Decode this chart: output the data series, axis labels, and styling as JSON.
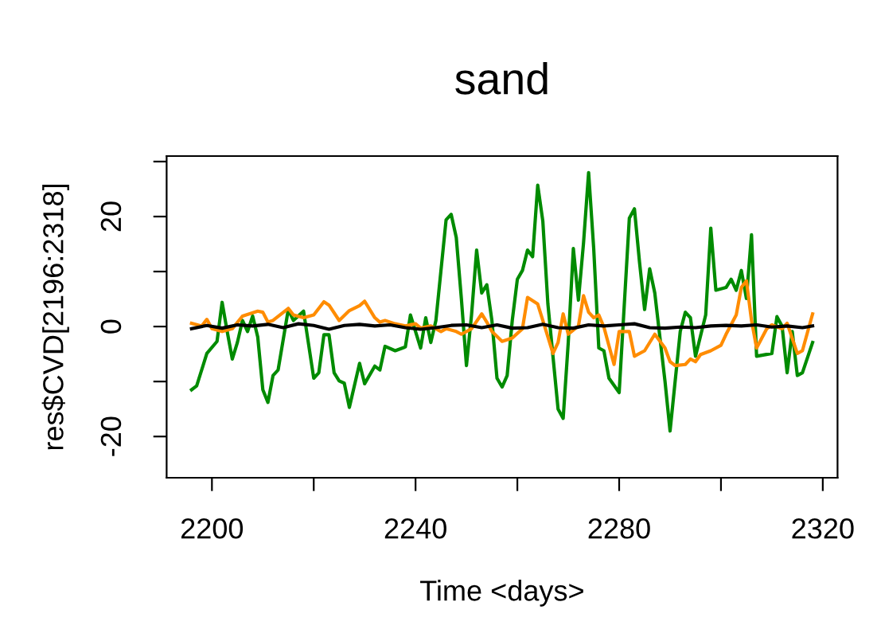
{
  "chart_data": {
    "type": "line",
    "title": "sand",
    "xlabel": "Time <days>",
    "ylabel": "res$CVD[2196:2318]",
    "xlim": [
      2191.1,
      2322.9
    ],
    "ylim": [
      -27.5,
      31
    ],
    "xticks": [
      2200,
      {
        "value": 2220,
        "label": null
      },
      2240,
      {
        "value": 2260,
        "label": null
      },
      2280,
      {
        "value": 2300,
        "label": null
      },
      2320
    ],
    "yticks": [
      -20,
      {
        "value": -10,
        "label": null
      },
      0,
      {
        "value": 10,
        "label": null
      },
      20,
      {
        "value": 30,
        "label": null
      }
    ],
    "grid": false,
    "legend": false,
    "marker": "none",
    "line_style": "solid",
    "series": [
      {
        "color": "#008b00",
        "x": [
          2196,
          2197,
          2199,
          2201,
          2202,
          2203,
          2204,
          2205,
          2206,
          2207,
          2208,
          2209,
          2210,
          2211,
          2212,
          2213,
          2215,
          2216,
          2218,
          2220,
          2221,
          2222,
          2223,
          2224,
          2225,
          2226,
          2227,
          2229,
          2230,
          2232,
          2233,
          2234,
          2236,
          2238,
          2239,
          2240,
          2241,
          2242,
          2243,
          2244,
          2246,
          2247,
          2248,
          2249,
          2250,
          2251,
          2252,
          2253,
          2254,
          2255,
          2256,
          2257,
          2258,
          2259,
          2260,
          2261,
          2262,
          2263,
          2264,
          2265,
          2266,
          2268,
          2269,
          2270,
          2271,
          2272,
          2273,
          2274,
          2275,
          2276,
          2277,
          2278,
          2280,
          2282,
          2283,
          2284,
          2285,
          2286,
          2287,
          2289,
          2290,
          2292,
          2293,
          2294,
          2295,
          2297,
          2298,
          2299,
          2301,
          2302,
          2303,
          2304,
          2305,
          2306,
          2307,
          2310,
          2311,
          2312,
          2313,
          2314,
          2315,
          2316,
          2318
        ],
        "values": [
          -11.5,
          -10.8,
          -4.9,
          -2.7,
          4.4,
          -0.9,
          -5.9,
          -2.9,
          1.1,
          -0.9,
          1.9,
          -1.9,
          -11.5,
          -13.8,
          -8.9,
          -7.9,
          3.1,
          1.1,
          2.8,
          -9.4,
          -8.4,
          -1.5,
          -1.5,
          -8.4,
          -9.9,
          -10.3,
          -14.7,
          -6.7,
          -10.4,
          -7.2,
          -7.9,
          -3.6,
          -4.4,
          -3.7,
          2.1,
          -0.9,
          -3.9,
          1.6,
          -2.9,
          1.1,
          19.4,
          20.4,
          16.2,
          5.1,
          -7.1,
          2.1,
          13.9,
          6.1,
          7.6,
          1.1,
          -9.4,
          -11,
          -8.9,
          1.1,
          8.6,
          10.2,
          13.9,
          12.7,
          25.7,
          19.2,
          4.1,
          -15,
          -16.7,
          -2.9,
          14.2,
          4.8,
          15.2,
          28,
          14.2,
          -3.9,
          -4.4,
          -9.4,
          -12,
          19.7,
          21.4,
          11.7,
          3.1,
          10.5,
          6.1,
          -9.9,
          -19,
          -0.9,
          2.6,
          1.6,
          -5.4,
          2.1,
          17.9,
          6.6,
          7.1,
          8.6,
          6.6,
          10.2,
          5.1,
          16.7,
          -5.4,
          -4.9,
          1.8,
          0.1,
          -8.4,
          -0.9,
          -8.9,
          -8.4,
          -2.9
        ]
      },
      {
        "color": "#ff8c00",
        "x": [
          2196,
          2198,
          2199,
          2200,
          2202,
          2204,
          2206,
          2209,
          2210,
          2211,
          2212,
          2215,
          2216,
          2218,
          2220,
          2222,
          2223,
          2225,
          2227,
          2229,
          2230,
          2232,
          2233,
          2234,
          2236,
          2238,
          2240,
          2241,
          2243,
          2245,
          2246,
          2248,
          2249,
          2251,
          2253,
          2254,
          2255,
          2257,
          2259,
          2261,
          2262,
          2264,
          2265,
          2266,
          2267,
          2268,
          2269,
          2270,
          2272,
          2273,
          2274,
          2275,
          2276,
          2277,
          2279,
          2280,
          2282,
          2283,
          2285,
          2287,
          2289,
          2290,
          2291,
          2293,
          2294,
          2295,
          2296,
          2298,
          2300,
          2301,
          2303,
          2304,
          2305,
          2306,
          2307,
          2309,
          2310,
          2312,
          2313,
          2315,
          2316,
          2318
        ],
        "values": [
          0.6,
          0.1,
          1.3,
          -0.4,
          -0.9,
          -0.4,
          1.9,
          2.8,
          2.6,
          0.8,
          1.1,
          3.3,
          2.1,
          1.6,
          2.1,
          4.5,
          3.9,
          1.1,
          2.9,
          3.8,
          4.6,
          1.6,
          0.8,
          1.1,
          0.5,
          0.1,
          0.5,
          -0.3,
          0.1,
          -0.9,
          -0.4,
          -0.9,
          -1.4,
          -0.4,
          2.3,
          0.8,
          -0.9,
          -2.7,
          -2.1,
          -0.4,
          5.3,
          4.1,
          1.1,
          -1.9,
          -4.9,
          -2.9,
          2.3,
          -1.4,
          0.1,
          5.6,
          2.6,
          1.6,
          2.1,
          -0.1,
          -6.9,
          -0.9,
          -0.9,
          -5.4,
          -4.4,
          -1.4,
          -3.9,
          -6.4,
          -7.1,
          -6.9,
          -5.9,
          -6.4,
          -5.1,
          -4.4,
          -3.4,
          -1.4,
          2.1,
          7.1,
          8.3,
          1.1,
          -3.9,
          -0.4,
          0.3,
          -0.4,
          0.6,
          -4.9,
          -4.4,
          2.3
        ]
      },
      {
        "color": "#000000",
        "x": [
          2196,
          2199,
          2202,
          2205,
          2208,
          2211,
          2214,
          2217,
          2220,
          2223,
          2226,
          2229,
          2232,
          2235,
          2238,
          2241,
          2244,
          2247,
          2250,
          2253,
          2256,
          2259,
          2262,
          2265,
          2268,
          2271,
          2274,
          2277,
          2280,
          2283,
          2286,
          2289,
          2292,
          2295,
          2298,
          2301,
          2304,
          2307,
          2310,
          2313,
          2316,
          2318
        ],
        "values": [
          -0.4,
          0.2,
          -0.3,
          0.3,
          0.1,
          0.4,
          -0.2,
          0.5,
          0.2,
          -0.5,
          0.2,
          0.4,
          0.1,
          0.3,
          -0.2,
          -0.5,
          -0.2,
          0.2,
          0.3,
          -0.2,
          0.3,
          -0.3,
          -0.2,
          0.4,
          -0.2,
          -0.3,
          0.3,
          0.1,
          0.3,
          0.5,
          -0.2,
          -0.3,
          -0.1,
          -0.2,
          0.1,
          0.2,
          0.1,
          0.3,
          -0.1,
          0.1,
          -0.2,
          0.1
        ]
      }
    ]
  }
}
